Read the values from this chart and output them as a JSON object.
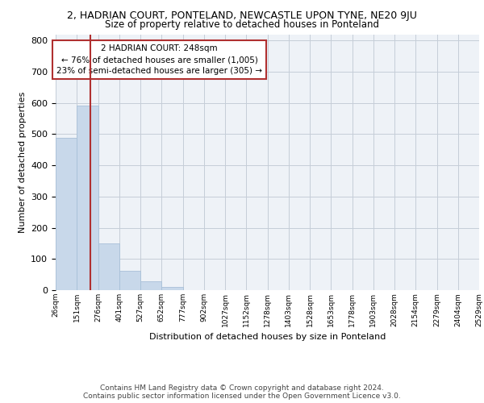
{
  "title": "2, HADRIAN COURT, PONTELAND, NEWCASTLE UPON TYNE, NE20 9JU",
  "subtitle": "Size of property relative to detached houses in Ponteland",
  "xlabel": "Distribution of detached houses by size in Ponteland",
  "ylabel": "Number of detached properties",
  "bar_heights": [
    487,
    591,
    150,
    62,
    29,
    11,
    0,
    0,
    0,
    0,
    0,
    0,
    0,
    0,
    0,
    0,
    0,
    0,
    0,
    0
  ],
  "bin_labels": [
    "26sqm",
    "151sqm",
    "276sqm",
    "401sqm",
    "527sqm",
    "652sqm",
    "777sqm",
    "902sqm",
    "1027sqm",
    "1152sqm",
    "1278sqm",
    "1403sqm",
    "1528sqm",
    "1653sqm",
    "1778sqm",
    "1903sqm",
    "2028sqm",
    "2154sqm",
    "2279sqm",
    "2404sqm",
    "2529sqm"
  ],
  "bar_color": "#c8d8ea",
  "bar_edge_color": "#a8c0d8",
  "vline_x": 1.64,
  "vline_color": "#b03030",
  "annotation_text": "2 HADRIAN COURT: 248sqm\n← 76% of detached houses are smaller (1,005)\n23% of semi-detached houses are larger (305) →",
  "annotation_box_color": "white",
  "annotation_box_edge": "#b03030",
  "ylim": [
    0,
    820
  ],
  "yticks": [
    0,
    100,
    200,
    300,
    400,
    500,
    600,
    700,
    800
  ],
  "footer_line1": "Contains HM Land Registry data © Crown copyright and database right 2024.",
  "footer_line2": "Contains public sector information licensed under the Open Government Licence v3.0.",
  "bg_color": "#eef2f7",
  "grid_color": "#c5cdd8",
  "title_fontsize": 9,
  "subtitle_fontsize": 8.5,
  "ylabel_fontsize": 8,
  "xlabel_fontsize": 8,
  "ytick_fontsize": 8,
  "xtick_fontsize": 6.5,
  "annot_fontsize": 7.5,
  "footer_fontsize": 6.5
}
